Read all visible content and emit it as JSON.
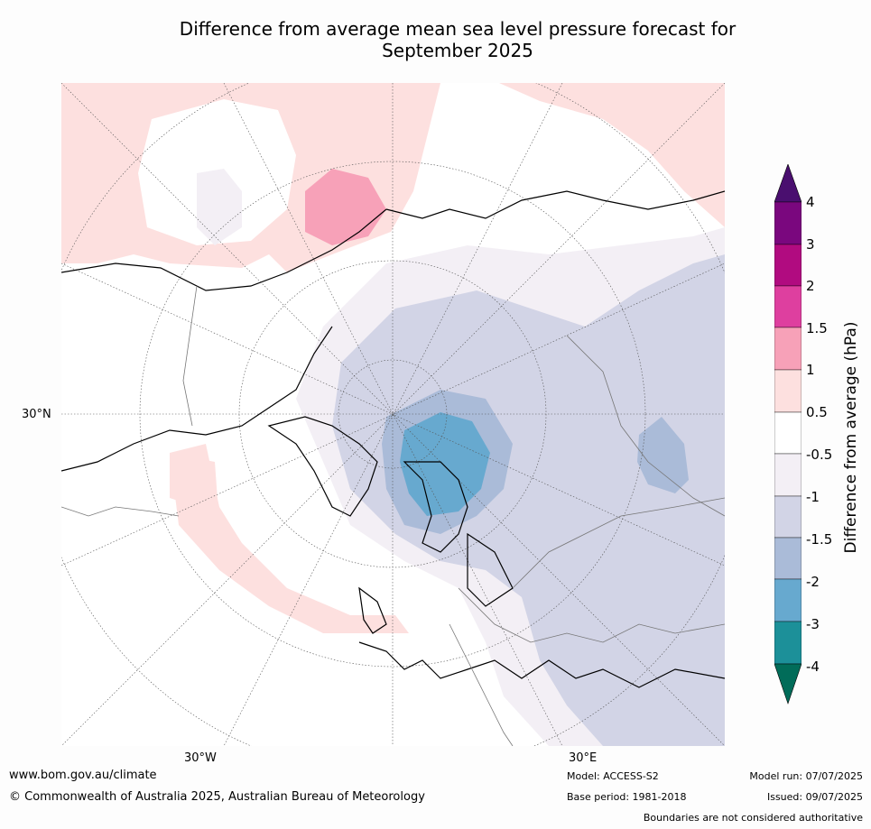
{
  "title_line1": "Difference from average mean sea level pressure forecast for",
  "title_line2": "September 2025",
  "axis_labels": {
    "lat_30n": "30°N",
    "lon_30w": "30°W",
    "lon_30e": "30°E"
  },
  "colorbar": {
    "title": "Difference from average (hPa)",
    "ticks": [
      "4",
      "3",
      "2",
      "1.5",
      "1",
      "0.5",
      "-0.5",
      "-1",
      "-1.5",
      "-2",
      "-3",
      "-4"
    ],
    "colors": {
      "over": "#4a0f6f",
      "3_to_4": "#7a077e",
      "2_to_3": "#b10b80",
      "1.5_to_2": "#de3f9f",
      "1_to_1.5": "#f7a1b8",
      "0.5_to_1": "#fde0df",
      "-0.5_to_0.5": "#ffffff",
      "-1_to_-0.5": "#f3eff5",
      "-1.5_to_-1": "#d2d4e6",
      "-2_to_-1.5": "#aabbd8",
      "-3_to_-2": "#67a9cf",
      "-4_to_-3": "#1c9099",
      "under": "#016c59"
    }
  },
  "footer": {
    "website": "www.bom.gov.au/climate",
    "copyright": "© Commonwealth of Australia 2025, Australian Bureau of Meteorology",
    "model": "Model: ACCESS-S2",
    "base_period": "Base period: 1981-2018",
    "model_run": "Model run: 07/07/2025",
    "issued": "Issued: 09/07/2025",
    "disclaimer": "Boundaries are not considered authoritative"
  }
}
